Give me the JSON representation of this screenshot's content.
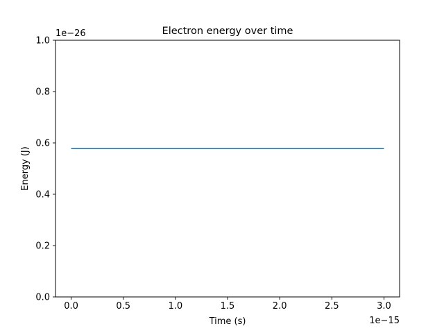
{
  "chart_data": {
    "type": "line",
    "title": "Electron energy over time",
    "xlabel": "Time (s)",
    "ylabel": "Energy (J)",
    "x_offset_label": "1e−15",
    "y_offset_label": "1e−26",
    "xlim": [
      -0.15,
      3.15
    ],
    "ylim": [
      0.0,
      1.0
    ],
    "x_ticks": [
      0.0,
      0.5,
      1.0,
      1.5,
      2.0,
      2.5,
      3.0
    ],
    "x_tick_labels": [
      "0.0",
      "0.5",
      "1.0",
      "1.5",
      "2.0",
      "2.5",
      "3.0"
    ],
    "y_ticks": [
      0.0,
      0.2,
      0.4,
      0.6,
      0.8,
      1.0
    ],
    "y_tick_labels": [
      "0.0",
      "0.2",
      "0.4",
      "0.6",
      "0.8",
      "1.0"
    ],
    "grid": false,
    "series": [
      {
        "color": "#1f77b4",
        "x": [
          0.0,
          3.0
        ],
        "y": [
          0.578,
          0.578
        ]
      }
    ]
  }
}
